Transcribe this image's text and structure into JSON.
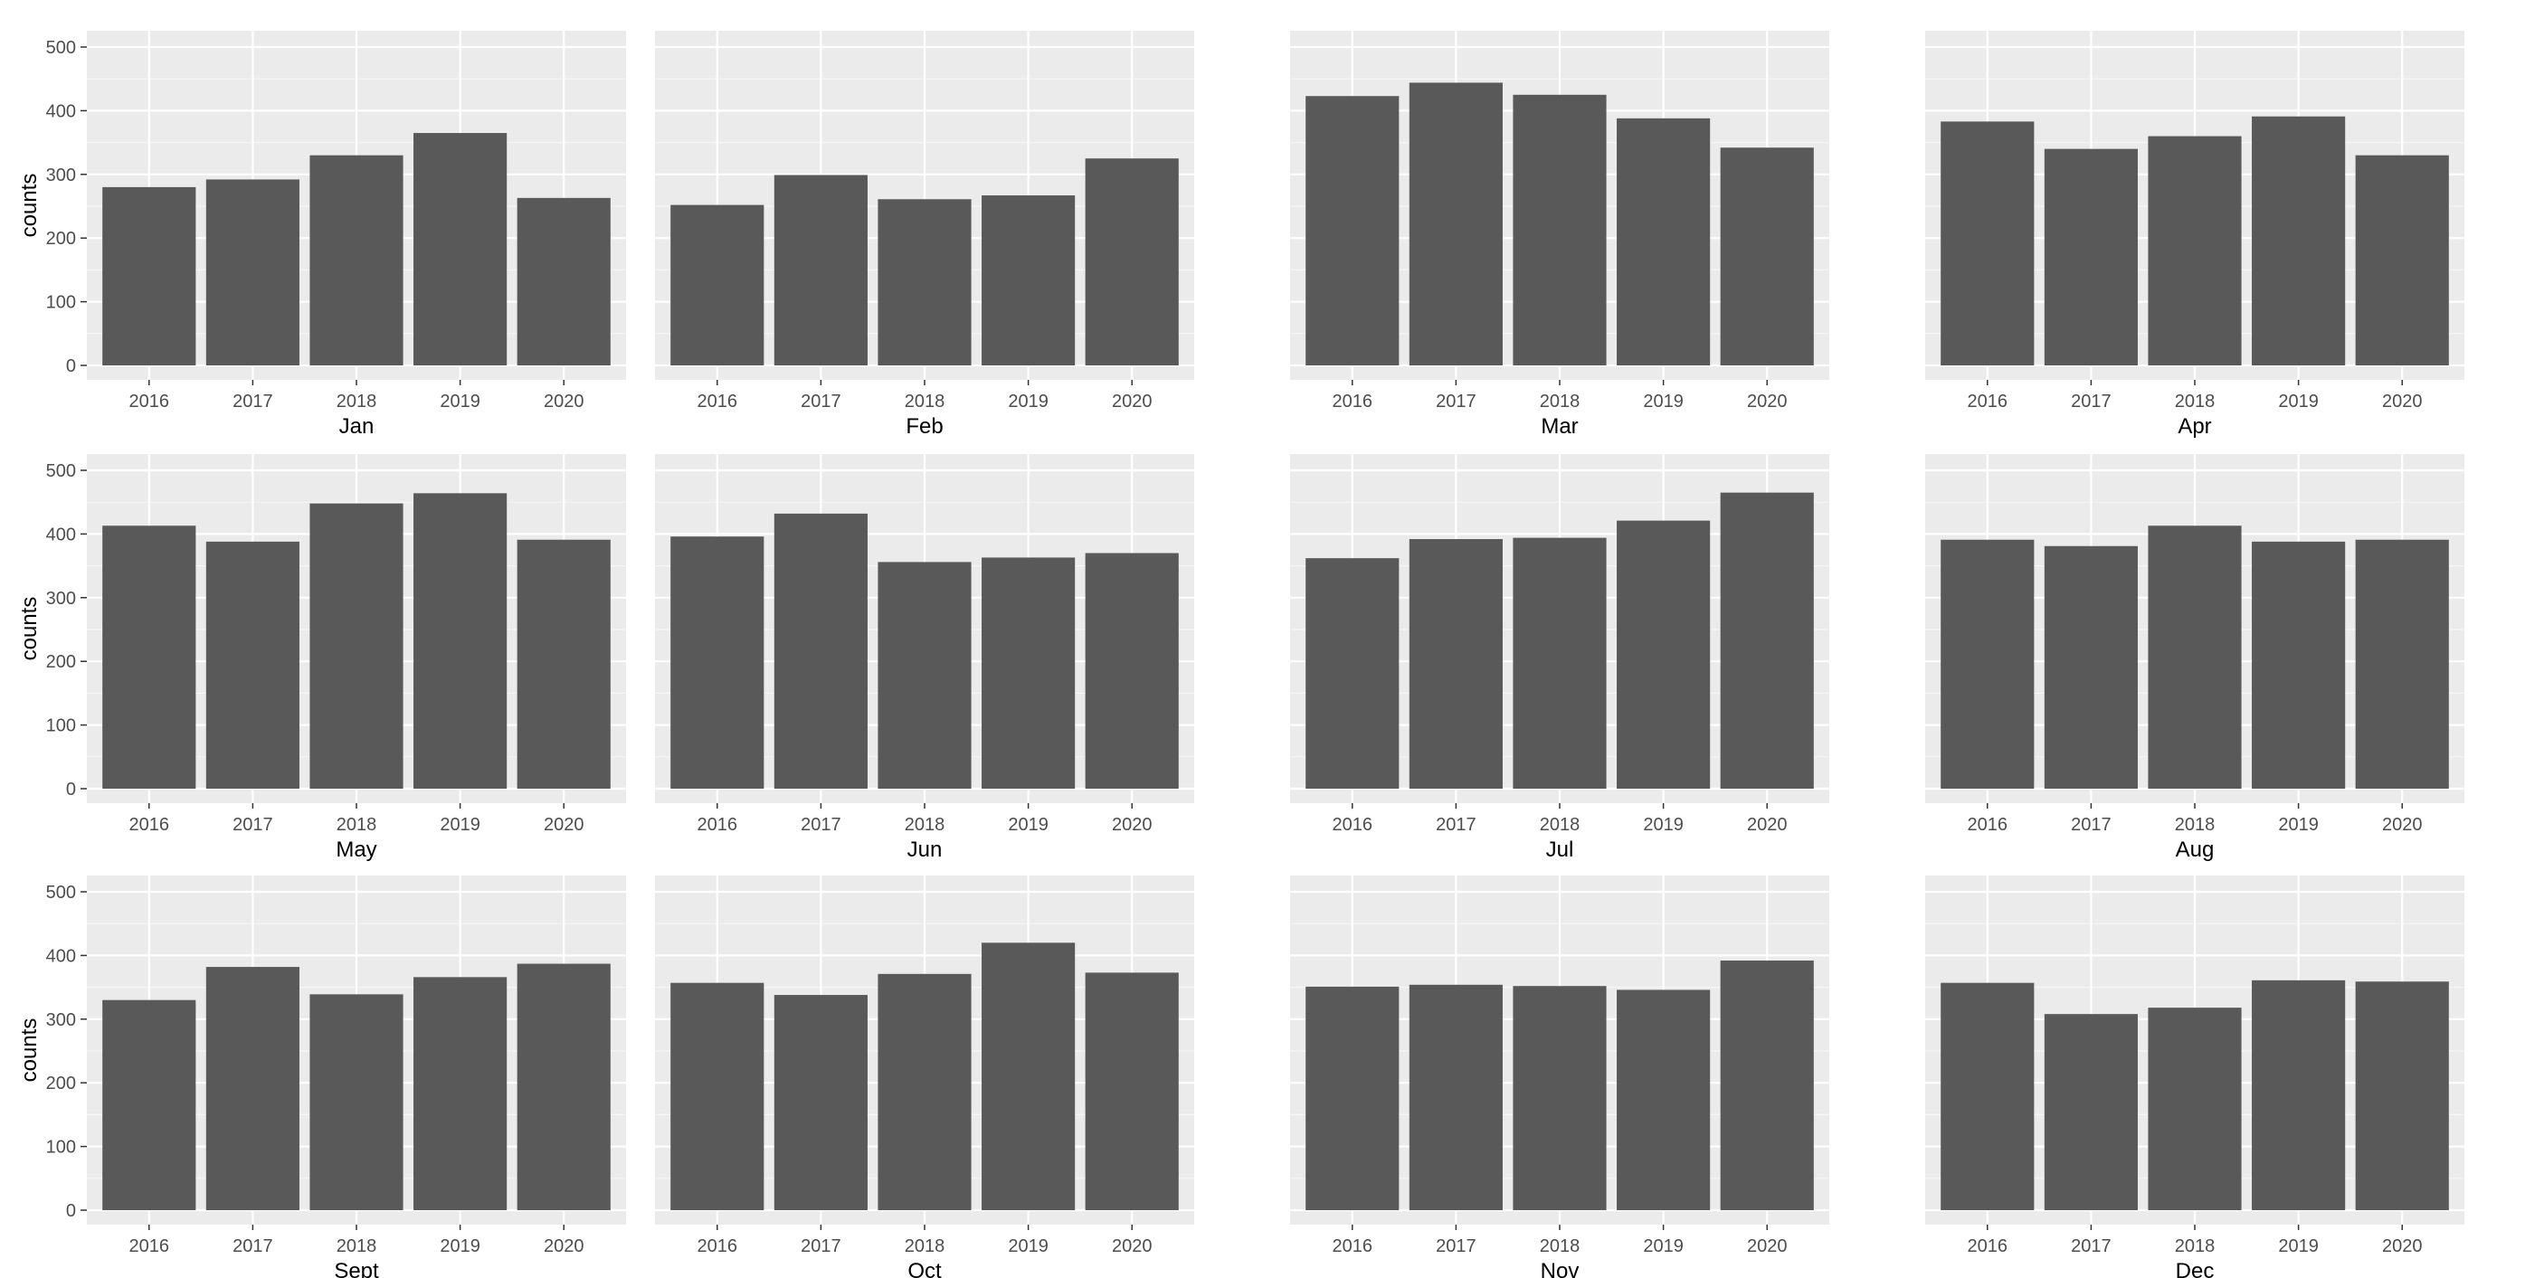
{
  "chart_data": {
    "type": "bar",
    "layout": "facets",
    "ylabel": "counts",
    "ylim": [
      0,
      500
    ],
    "yticks": [
      0,
      100,
      200,
      300,
      400,
      500
    ],
    "grid": true,
    "theme_colors": {
      "panel_background": "#ebebeb",
      "grid_major": "#ffffff",
      "bar_fill": "#595959",
      "tick_text": "#4d4d4d",
      "label_text": "#000000"
    },
    "categories": [
      "2016",
      "2017",
      "2018",
      "2019",
      "2020"
    ],
    "panels": [
      {
        "name": "Jan",
        "values": [
          280,
          292,
          330,
          365,
          263
        ]
      },
      {
        "name": "Feb",
        "values": [
          252,
          299,
          261,
          267,
          325
        ]
      },
      {
        "name": "Mar",
        "values": [
          423,
          444,
          425,
          388,
          342
        ]
      },
      {
        "name": "Apr",
        "values": [
          383,
          340,
          360,
          391,
          330
        ]
      },
      {
        "name": "May",
        "values": [
          413,
          388,
          448,
          464,
          391
        ]
      },
      {
        "name": "Jun",
        "values": [
          396,
          432,
          356,
          363,
          370
        ]
      },
      {
        "name": "Jul",
        "values": [
          362,
          392,
          394,
          421,
          465
        ]
      },
      {
        "name": "Aug",
        "values": [
          391,
          381,
          413,
          388,
          391
        ]
      },
      {
        "name": "Sept",
        "values": [
          330,
          382,
          339,
          366,
          387
        ]
      },
      {
        "name": "Oct",
        "values": [
          357,
          338,
          371,
          420,
          373
        ]
      },
      {
        "name": "Nov",
        "values": [
          351,
          354,
          352,
          346,
          392
        ]
      },
      {
        "name": "Dec",
        "values": [
          357,
          308,
          318,
          361,
          359
        ]
      }
    ]
  }
}
